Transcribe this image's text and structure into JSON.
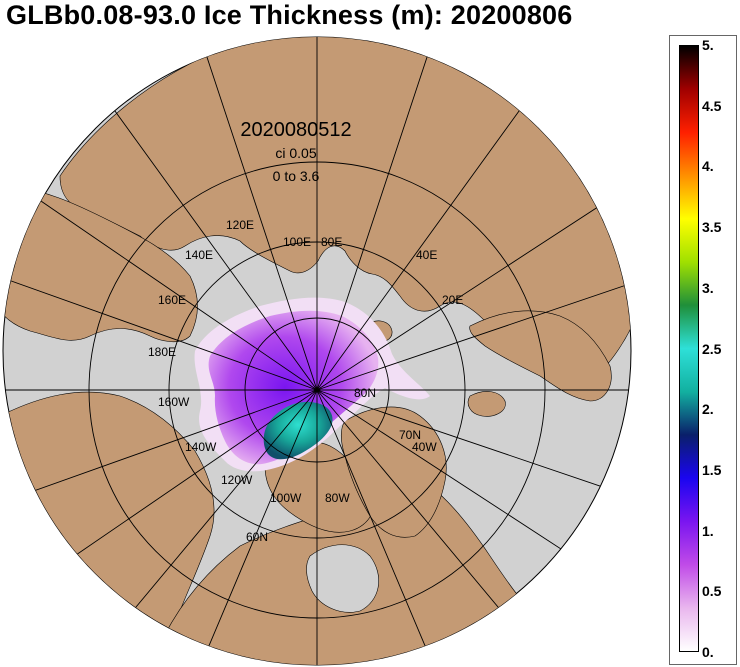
{
  "title": "GLBb0.08-93.0 Ice Thickness (m): 20200806",
  "map": {
    "projection": "north-polar-stereographic",
    "info": {
      "datetime": "2020080512",
      "contour_interval": "ci 0.05",
      "range": "0 to 3.6"
    },
    "longitude_labels": [
      "120E",
      "140E",
      "100E",
      "80E",
      "40E",
      "20E",
      "160E",
      "180E",
      "160W",
      "140W",
      "120W",
      "100W",
      "80W"
    ],
    "latitude_labels": [
      "80N",
      "70N",
      "60N"
    ],
    "lat_lon_extra_label": "40W",
    "colors": {
      "land": "#c49a74",
      "ocean": "#d1d1d1",
      "grid": "#000000"
    }
  },
  "colorbar": {
    "ticks": [
      "5.",
      "4.5",
      "4.",
      "3.5",
      "3.",
      "2.5",
      "2.",
      "1.5",
      "1.",
      "0.5",
      "0."
    ],
    "min": 0,
    "max": 5,
    "stops": [
      "#ffffff",
      "#e9b6ee",
      "#c04be8",
      "#7a15f0",
      "#1a05f0",
      "#0a1f6a",
      "#12b0a0",
      "#2ee0d8",
      "#1f8f3a",
      "#a0e000",
      "#ffff00",
      "#ff9000",
      "#ff2000",
      "#a00000",
      "#000000"
    ]
  }
}
